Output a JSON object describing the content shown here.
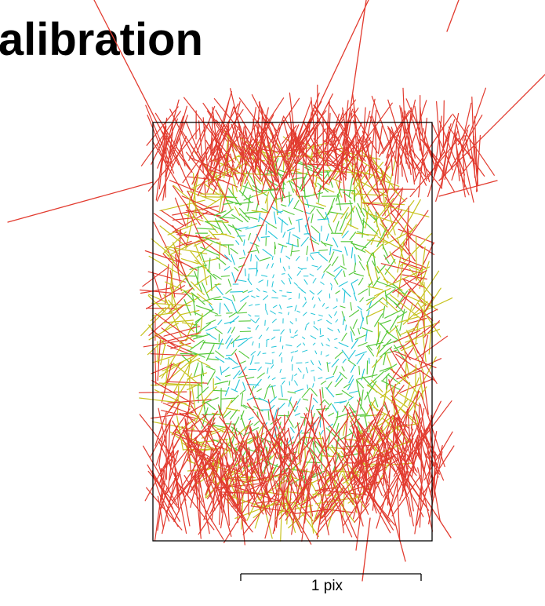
{
  "title": "Calibration",
  "scale_bar": {
    "label": "1 pix"
  },
  "colors": {
    "small": "#22c5d8",
    "medium": "#55c83a",
    "large": "#c7c21e",
    "xlarge": "#e23b2f",
    "frame": "#000000"
  }
}
